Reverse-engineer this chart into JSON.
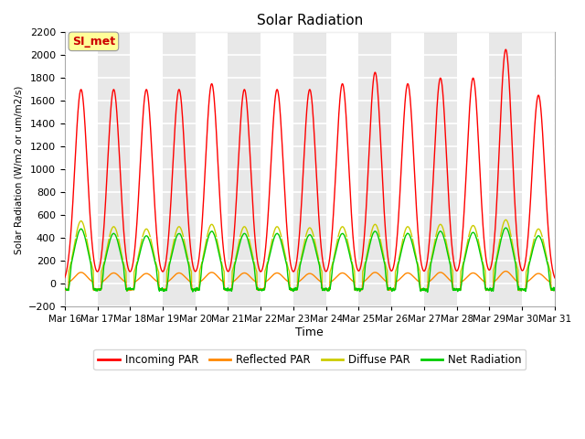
{
  "title": "Solar Radiation",
  "ylabel": "Solar Radiation (W/m2 or um/m2/s)",
  "xlabel": "Time",
  "ylim": [
    -200,
    2200
  ],
  "yticks": [
    -200,
    0,
    200,
    400,
    600,
    800,
    1000,
    1200,
    1400,
    1600,
    1800,
    2000,
    2200
  ],
  "annotation_text": "SI_met",
  "annotation_color": "#cc0000",
  "annotation_bg": "#ffff99",
  "series_colors": {
    "incoming": "#ff0000",
    "reflected": "#ff8800",
    "diffuse": "#cccc00",
    "net": "#00cc00"
  },
  "series_labels": [
    "Incoming PAR",
    "Reflected PAR",
    "Diffuse PAR",
    "Net Radiation"
  ],
  "n_days": 15,
  "background_color": "#ffffff",
  "tick_dates": [
    "Mar 16",
    "Mar 17",
    "Mar 18",
    "Mar 19",
    "Mar 20",
    "Mar 21",
    "Mar 22",
    "Mar 23",
    "Mar 24",
    "Mar 25",
    "Mar 26",
    "Mar 27",
    "Mar 28",
    "Mar 29",
    "Mar 30",
    "Mar 31"
  ],
  "peak_incoming": [
    1700,
    1700,
    1700,
    1700,
    1750,
    1700,
    1700,
    1700,
    1750,
    1850,
    1750,
    1800,
    1800,
    2050,
    1650
  ],
  "peak_diffuse": [
    550,
    500,
    480,
    500,
    520,
    500,
    500,
    490,
    500,
    520,
    500,
    520,
    510,
    560,
    480
  ],
  "peak_net": [
    480,
    440,
    420,
    440,
    460,
    440,
    440,
    430,
    440,
    460,
    440,
    460,
    450,
    490,
    420
  ],
  "peak_reflected": [
    100,
    95,
    90,
    95,
    100,
    95,
    95,
    90,
    95,
    100,
    95,
    100,
    95,
    110,
    90
  ],
  "night_net": -50,
  "night_reflected": -50,
  "night_diffuse": -50
}
